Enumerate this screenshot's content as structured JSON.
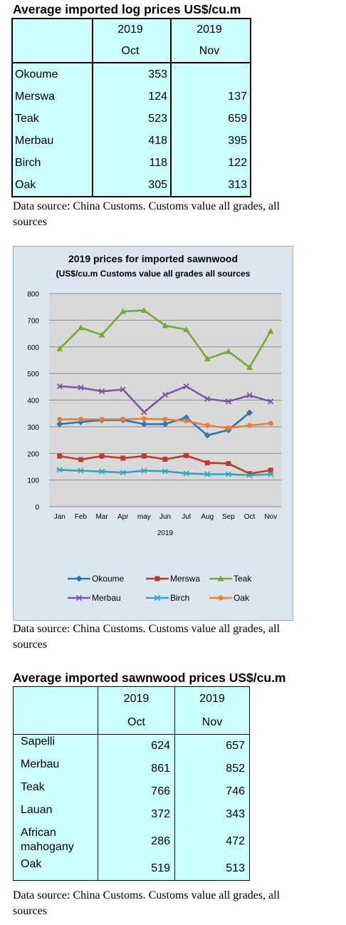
{
  "log_table": {
    "title": "Average imported log prices US$/cu.m",
    "header": {
      "year_oct": "2019",
      "year_nov": "2019",
      "month_oct": "Oct",
      "month_nov": "Nov"
    },
    "rows": [
      {
        "name": "Okoume",
        "oct": "353",
        "nov": ""
      },
      {
        "name": "Merswa",
        "oct": "124",
        "nov": "137"
      },
      {
        "name": "Teak",
        "oct": "523",
        "nov": "659"
      },
      {
        "name": "Merbau",
        "oct": "418",
        "nov": "395"
      },
      {
        "name": "Birch",
        "oct": "118",
        "nov": "122"
      },
      {
        "name": "Oak",
        "oct": "305",
        "nov": "313"
      }
    ],
    "source_line1": "Data source: China Customs. Customs value all grades, all",
    "source_line2": "sources"
  },
  "chart": {
    "source_line1": "Data source: China Customs. Customs value all grades, all",
    "source_line2": "sources"
  },
  "chart_data": {
    "type": "line",
    "title": "2019 prices for imported sawnwood",
    "subtitle": "(US$/cu.m Customs value all grades all sources",
    "xlabel": "2019",
    "ylabel": "",
    "ylim": [
      0,
      800
    ],
    "yticks": [
      "0",
      "100",
      "200",
      "300",
      "400",
      "500",
      "600",
      "700",
      "800"
    ],
    "categories": [
      "Jan",
      "Feb",
      "Mar",
      "Apr",
      "may",
      "Jun",
      "Jul",
      "Aug",
      "Sep",
      "Oct",
      "Nov"
    ],
    "grid": true,
    "legend": "bottom",
    "series": [
      {
        "name": "Okoume",
        "color": "#2e75b6",
        "marker": "diamond",
        "values": [
          310,
          318,
          325,
          325,
          310,
          310,
          335,
          268,
          288,
          353,
          null
        ]
      },
      {
        "name": "Merswa",
        "color": "#c0392b",
        "marker": "square",
        "values": [
          190,
          177,
          190,
          182,
          190,
          178,
          192,
          165,
          162,
          124,
          137
        ]
      },
      {
        "name": "Teak",
        "color": "#77a832",
        "marker": "triangle",
        "values": [
          593,
          672,
          645,
          733,
          737,
          680,
          665,
          555,
          583,
          523,
          659
        ]
      },
      {
        "name": "Merbau",
        "color": "#7c57a4",
        "marker": "x",
        "values": [
          452,
          447,
          433,
          440,
          355,
          420,
          452,
          405,
          395,
          418,
          395
        ]
      },
      {
        "name": "Birch",
        "color": "#31a3c4",
        "marker": "star",
        "values": [
          138,
          135,
          132,
          128,
          135,
          133,
          125,
          122,
          122,
          118,
          122
        ]
      },
      {
        "name": "Oak",
        "color": "#ed7d31",
        "marker": "circle",
        "values": [
          328,
          328,
          328,
          328,
          330,
          328,
          322,
          305,
          295,
          305,
          313
        ]
      }
    ]
  },
  "sawnwood_table": {
    "title": "Average imported sawnwood prices US$/cu.m",
    "header": {
      "year_oct": "2019",
      "year_nov": "2019",
      "month_oct": "Oct",
      "month_nov": "Nov"
    },
    "rows": [
      {
        "name": "Sapelli",
        "oct": "624",
        "nov": "657"
      },
      {
        "name": "Merbau",
        "oct": "861",
        "nov": "852"
      },
      {
        "name": "Teak",
        "oct": "766",
        "nov": "746"
      },
      {
        "name": "Lauan",
        "oct": "372",
        "nov": "343"
      },
      {
        "name_line1": "African",
        "name_line2": "mahogany",
        "oct": "286",
        "nov": "472"
      },
      {
        "name": "Oak",
        "oct": "519",
        "nov": "513"
      }
    ],
    "source_line1": "Data source: China Customs. Customs value all grades, all",
    "source_line2": "sources"
  }
}
